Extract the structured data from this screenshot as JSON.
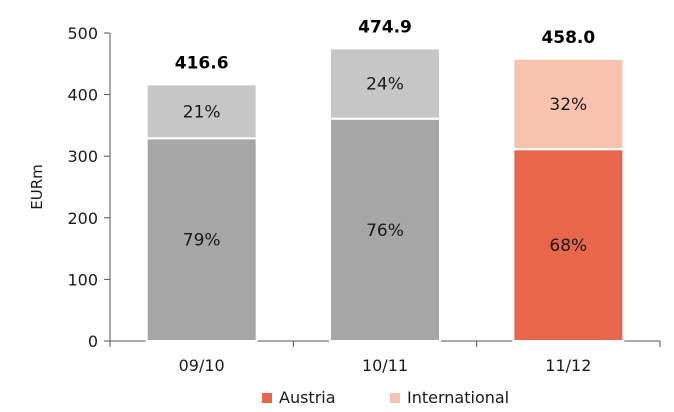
{
  "chart_data": {
    "type": "bar",
    "stacked": true,
    "categories": [
      "09/10",
      "10/11",
      "11/12"
    ],
    "totals": [
      "416.6",
      "474.9",
      "458.0"
    ],
    "series": [
      {
        "name": "Austria",
        "values": [
          329.1,
          360.9,
          311.4
        ],
        "labels": [
          "79%",
          "76%",
          "68%"
        ],
        "legend_color": "#e8674a",
        "colors": [
          "#a6a6a6",
          "#a6a6a6",
          "#e8674a"
        ]
      },
      {
        "name": "International",
        "values": [
          87.5,
          114.0,
          146.6
        ],
        "labels": [
          "21%",
          "24%",
          "32%"
        ],
        "legend_color": "#f8c3ad",
        "colors": [
          "#c6c6c6",
          "#c6c6c6",
          "#f8c3ad"
        ]
      }
    ],
    "ylabel": "EURm",
    "ylim": [
      0,
      500
    ],
    "yticks": [
      "0",
      "100",
      "200",
      "300",
      "400",
      "500"
    ],
    "grid": false,
    "legend": "bottom"
  }
}
